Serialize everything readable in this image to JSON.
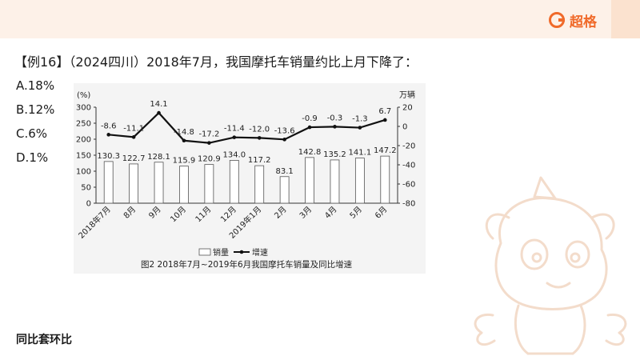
{
  "header": {
    "brand_name": "超格",
    "colors": {
      "band": "#fdf1e8",
      "brand": "#f06a2a",
      "band_accent": "#fbe2cf"
    }
  },
  "question": {
    "text": "【例16】（2024四川）2018年7月，我国摩托车销量约比上月下降了：",
    "options": [
      "A.18%",
      "B.12%",
      "C.6%",
      "D.1%"
    ]
  },
  "footer_note": "同比套环比",
  "chart_data": {
    "type": "bar+line",
    "caption": "图2  2018年7月~2019年6月我国摩托车销量及同比增速",
    "categories": [
      "2018年7月",
      "8月",
      "9月",
      "10月",
      "11月",
      "12月",
      "2019年1月",
      "2月",
      "3月",
      "4月",
      "5月",
      "6月"
    ],
    "left_axis": {
      "unit_label": "(%)",
      "ylim": [
        0,
        300
      ],
      "ticks": [
        0,
        50,
        100,
        150,
        200,
        250,
        300
      ]
    },
    "right_axis": {
      "unit_label": "万辆",
      "ylim": [
        -80,
        20
      ],
      "ticks": [
        -80,
        -60,
        -40,
        -20,
        0,
        20
      ]
    },
    "series": [
      {
        "name": "销量",
        "kind": "bar",
        "values": [
          130.3,
          122.7,
          128.1,
          115.9,
          120.9,
          134.0,
          117.2,
          83.1,
          142.8,
          135.2,
          141.1,
          147.2
        ],
        "labels": [
          "130.3",
          "122.7",
          "128.1",
          "115.9",
          "120.9",
          "134.0",
          "117.2",
          "83.1",
          "142.8",
          "135.2",
          "141.1",
          "147.2"
        ]
      },
      {
        "name": "增速",
        "kind": "line",
        "values": [
          -8.6,
          -11.1,
          14.1,
          -14.8,
          -17.2,
          -11.4,
          -12.0,
          -13.6,
          -0.9,
          -0.3,
          -1.3,
          6.7
        ],
        "labels": [
          "-8.6",
          "-11.1",
          "14.1",
          "-14.8",
          "-17.2",
          "-11.4",
          "-12.0",
          "-13.6",
          "-0.9",
          "-0.3",
          "-1.3",
          "6.7"
        ]
      }
    ],
    "legend_position": "bottom",
    "grid": false
  }
}
